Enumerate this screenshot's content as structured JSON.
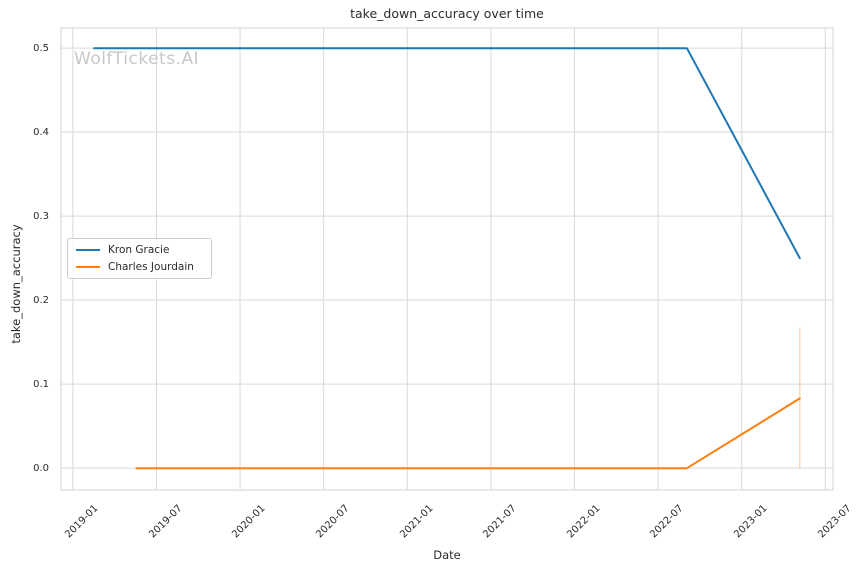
{
  "figure": {
    "watermark_text": "WolfTickets.AI",
    "watermark_color": "#c8c8c8",
    "background_color": "#ffffff",
    "text_color": "#2b2b2b",
    "grid_color": "#d9d9d9"
  },
  "chart_data": {
    "type": "line",
    "title": "take_down_accuracy over time",
    "xlabel": "Date",
    "ylabel": "take_down_accuracy",
    "grid": true,
    "legend_position": "center left",
    "x_ticks": [
      "2019-01",
      "2019-07",
      "2020-01",
      "2020-07",
      "2021-01",
      "2021-07",
      "2022-01",
      "2022-07",
      "2023-01",
      "2023-07"
    ],
    "y_ticks": [
      "0.0",
      "0.1",
      "0.2",
      "0.3",
      "0.4",
      "0.5"
    ],
    "ylim": [
      -0.026,
      0.524
    ],
    "xlim_months_from_2019_01": [
      -0.85,
      54.55
    ],
    "series": [
      {
        "name": "Kron Gracie",
        "color": "#1f77b4",
        "points": [
          {
            "date": "2019-02-17",
            "value": 0.5
          },
          {
            "date": "2022-09-03",
            "value": 0.5
          },
          {
            "date": "2023-05-06",
            "value": 0.25
          }
        ]
      },
      {
        "name": "Charles Jourdain",
        "color": "#ff7f0e",
        "points": [
          {
            "date": "2019-05-18",
            "value": 0.0
          },
          {
            "date": "2022-09-03",
            "value": 0.0
          },
          {
            "date": "2023-05-06",
            "value": 0.083
          }
        ]
      }
    ],
    "error_bars": [
      {
        "series": "Charles Jourdain",
        "date": "2023-05-06",
        "low": 0.0,
        "high": 0.167,
        "color": "#ff7f0e",
        "opacity": 0.3
      }
    ]
  }
}
